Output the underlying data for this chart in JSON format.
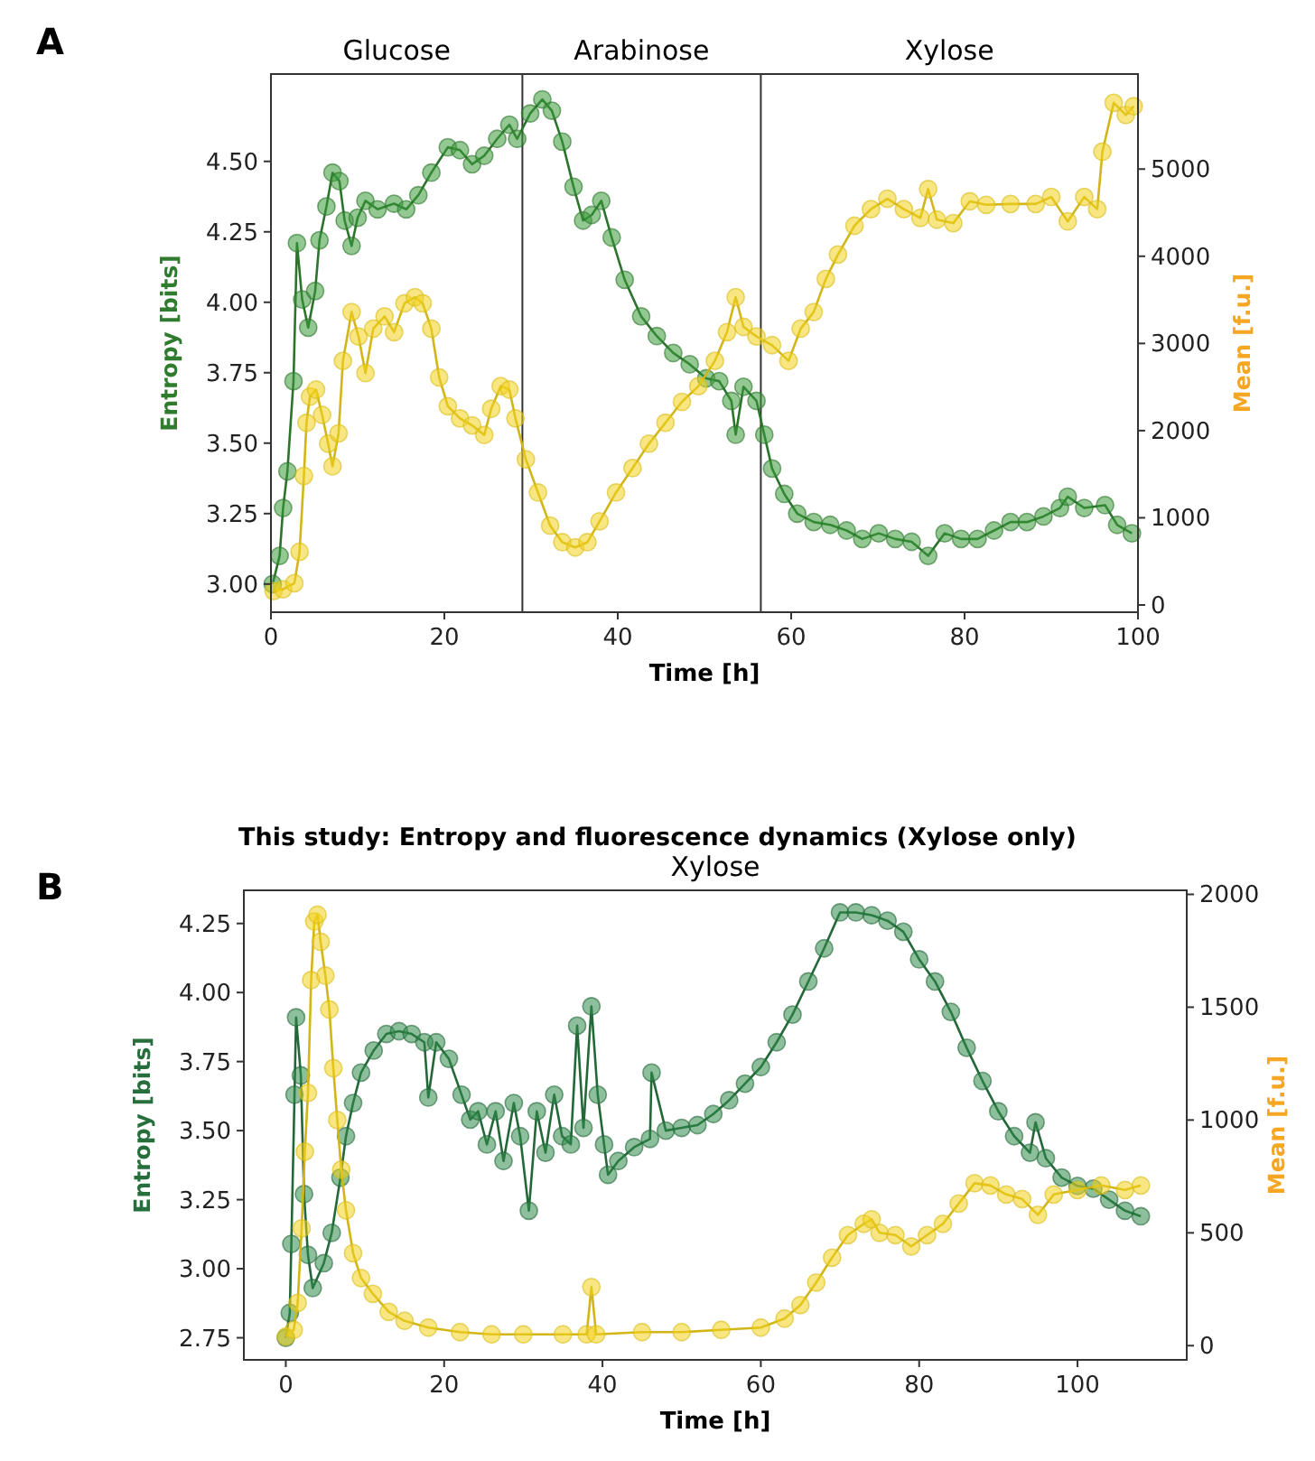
{
  "chart_data": [
    {
      "type": "line",
      "xlabel": "Time [h]",
      "ylabel": "Entropy [bits]",
      "y2label": "Mean [f.u.]",
      "xlim": [
        0,
        100
      ],
      "xticks": [
        0,
        20,
        40,
        60,
        80,
        100
      ],
      "ylim": [
        2.9,
        4.81
      ],
      "yticks": [
        {
          "value": 3,
          "label": "3.00"
        },
        {
          "value": 3.25,
          "label": "3.25"
        },
        {
          "value": 3.5,
          "label": "3.50"
        },
        {
          "value": 3.75,
          "label": "3.75"
        },
        {
          "value": 4,
          "label": "4.00"
        },
        {
          "value": 4.25,
          "label": "4.25"
        },
        {
          "value": 4.5,
          "label": "4.50"
        }
      ],
      "y2lim": [
        -83,
        6090
      ],
      "y2ticks": [
        0,
        1000,
        2000,
        3000,
        4000,
        5000
      ],
      "grid": false,
      "marker": "circle",
      "line_style": "solid",
      "annotations": [
        "A",
        "Glucose",
        "Arabinose",
        "Xylose"
      ],
      "ref_lines": [
        {
          "axis": "x",
          "value": 29,
          "color": "#333333"
        },
        {
          "axis": "x",
          "value": 56.5,
          "color": "#333333"
        }
      ],
      "series": [
        {
          "color": "#3a9a3a",
          "x": [
            0.2,
            1,
            1.4,
            1.9,
            2.6,
            3,
            3.6,
            4.3,
            5.1,
            5.6,
            6.4,
            7.1,
            7.9,
            8.5,
            9.3,
            10,
            10.9,
            12.3,
            14.2,
            15.6,
            17,
            18.5,
            20.4,
            21.8,
            23.2,
            24.6,
            26.1,
            27.5,
            28.4,
            29.9,
            31.3,
            32.4,
            33.6,
            34.9,
            36,
            37,
            38.1,
            39.3,
            40.8,
            42.7,
            44.5,
            46.4,
            48.3,
            50.2,
            51.7,
            53.1,
            53.6,
            54.5,
            56,
            56.9,
            57.8,
            59.2,
            60.7,
            62.6,
            64.5,
            66.4,
            68.2,
            70.1,
            72,
            73.9,
            75.8,
            77.7,
            79.6,
            81.5,
            83.4,
            85.3,
            87.2,
            89.1,
            91,
            91.9,
            93.8,
            96.2,
            97.6,
            99.3
          ],
          "values": [
            3,
            3.1,
            3.27,
            3.4,
            3.72,
            4.21,
            4.01,
            3.91,
            4.04,
            4.22,
            4.34,
            4.46,
            4.43,
            4.29,
            4.2,
            4.3,
            4.36,
            4.33,
            4.35,
            4.33,
            4.38,
            4.46,
            4.55,
            4.54,
            4.49,
            4.52,
            4.58,
            4.63,
            4.58,
            4.67,
            4.72,
            4.68,
            4.57,
            4.41,
            4.29,
            4.31,
            4.36,
            4.23,
            4.08,
            3.95,
            3.88,
            3.82,
            3.78,
            3.73,
            3.72,
            3.65,
            3.53,
            3.7,
            3.65,
            3.53,
            3.41,
            3.32,
            3.25,
            3.22,
            3.21,
            3.19,
            3.16,
            3.18,
            3.16,
            3.15,
            3.1,
            3.18,
            3.16,
            3.16,
            3.19,
            3.22,
            3.22,
            3.24,
            3.27,
            3.31,
            3.27,
            3.28,
            3.21,
            3.18
          ]
        },
        {
          "color": "#f2d21b",
          "axis": "y2",
          "x": [
            0.3,
            1.4,
            2.7,
            3.3,
            3.8,
            4.1,
            4.5,
            5.2,
            5.9,
            6.6,
            7.1,
            7.8,
            8.3,
            9.3,
            10.1,
            10.9,
            11.8,
            13.1,
            14.2,
            15.4,
            16.6,
            17.5,
            18.5,
            19.4,
            20.4,
            21.8,
            23.2,
            24.6,
            25.4,
            26.5,
            27.5,
            28.2,
            29.4,
            30.8,
            32.2,
            33.6,
            35.1,
            36.5,
            37.9,
            39.8,
            41.7,
            43.6,
            45.5,
            47.4,
            49.3,
            51.2,
            52.6,
            53.6,
            54.5,
            56,
            57.8,
            59.7,
            61.1,
            62.6,
            64,
            65.4,
            67.3,
            69.2,
            71.1,
            73,
            74.9,
            75.8,
            76.8,
            78.7,
            80.6,
            82.5,
            85.3,
            88.2,
            90,
            91.9,
            93.8,
            95.3,
            95.9,
            97.2,
            98.6,
            99.5
          ],
          "values": [
            160,
            180,
            250,
            610,
            1480,
            2090,
            2390,
            2470,
            2180,
            1850,
            1590,
            1970,
            2800,
            3360,
            3080,
            2660,
            3170,
            3310,
            3130,
            3460,
            3530,
            3460,
            3170,
            2610,
            2280,
            2140,
            2060,
            1950,
            2250,
            2510,
            2470,
            2140,
            1670,
            1290,
            910,
            720,
            660,
            720,
            960,
            1290,
            1570,
            1850,
            2090,
            2330,
            2510,
            2800,
            3130,
            3530,
            3190,
            3080,
            2980,
            2800,
            3170,
            3360,
            3740,
            4020,
            4350,
            4540,
            4660,
            4540,
            4440,
            4770,
            4420,
            4380,
            4630,
            4590,
            4600,
            4600,
            4680,
            4400,
            4680,
            4540,
            5200,
            5760,
            5620,
            5720
          ]
        }
      ]
    },
    {
      "type": "line",
      "title": "Xylose",
      "xlabel": "Time [h]",
      "ylabel": "Entropy [bits]",
      "y2label": "Mean [f.u.]",
      "xlim": [
        -5.3,
        113.8
      ],
      "xticks": [
        0,
        20,
        40,
        60,
        80,
        100
      ],
      "ylim": [
        2.67,
        4.37
      ],
      "yticks": [
        {
          "value": 2.75,
          "label": "2.75"
        },
        {
          "value": 3,
          "label": "3.00"
        },
        {
          "value": 3.25,
          "label": "3.25"
        },
        {
          "value": 3.5,
          "label": "3.50"
        },
        {
          "value": 3.75,
          "label": "3.75"
        },
        {
          "value": 4,
          "label": "4.00"
        },
        {
          "value": 4.25,
          "label": "4.25"
        }
      ],
      "y2lim": [
        -63,
        2018
      ],
      "y2ticks": [
        0,
        500,
        1000,
        1500,
        2000
      ],
      "grid": false,
      "marker": "circle",
      "line_style": "solid",
      "annotations": [
        "B",
        "This study: Entropy and fluorescence dynamics (Xylose only)"
      ],
      "series": [
        {
          "color": "#2f8a4a",
          "x": [
            0,
            0.5,
            0.7,
            1.1,
            1.3,
            1.9,
            2.3,
            2.8,
            3.4,
            4.8,
            5.8,
            6.9,
            7.6,
            8.5,
            9.5,
            11.1,
            12.7,
            14.3,
            15.9,
            17.5,
            18,
            19,
            20.6,
            22.2,
            23.3,
            24.3,
            25.4,
            26.5,
            27.5,
            28.8,
            29.6,
            30.7,
            31.7,
            32.8,
            33.9,
            34.9,
            36,
            36.8,
            37.6,
            38.6,
            39.4,
            40.2,
            40.7,
            42,
            44,
            46,
            46.2,
            48,
            50,
            52,
            54,
            56,
            58,
            60,
            62,
            64,
            66,
            68,
            70,
            72,
            74,
            76,
            78,
            80,
            82,
            84,
            86,
            88,
            90,
            92,
            94,
            94.7,
            96,
            98,
            100,
            102,
            104,
            106,
            108
          ],
          "values": [
            2.75,
            2.84,
            3.09,
            3.63,
            3.91,
            3.7,
            3.27,
            3.05,
            2.93,
            3.02,
            3.13,
            3.33,
            3.48,
            3.6,
            3.71,
            3.79,
            3.85,
            3.86,
            3.85,
            3.82,
            3.62,
            3.82,
            3.76,
            3.63,
            3.54,
            3.57,
            3.45,
            3.57,
            3.39,
            3.6,
            3.48,
            3.21,
            3.57,
            3.42,
            3.63,
            3.48,
            3.45,
            3.88,
            3.51,
            3.95,
            3.63,
            3.45,
            3.34,
            3.39,
            3.44,
            3.47,
            3.71,
            3.5,
            3.51,
            3.52,
            3.56,
            3.61,
            3.67,
            3.73,
            3.82,
            3.92,
            4.04,
            4.16,
            4.29,
            4.29,
            4.28,
            4.26,
            4.22,
            4.12,
            4.04,
            3.93,
            3.8,
            3.68,
            3.57,
            3.48,
            3.42,
            3.53,
            3.4,
            3.33,
            3.3,
            3.29,
            3.25,
            3.21,
            3.19
          ]
        },
        {
          "color": "#f2d21b",
          "axis": "y2",
          "x": [
            0,
            1,
            1.5,
            2,
            2.4,
            2.8,
            3.2,
            3.6,
            4,
            4.4,
            5,
            5.5,
            6,
            6.5,
            7,
            7.6,
            8.5,
            9.5,
            11,
            13,
            15,
            18,
            22,
            26,
            30,
            35,
            38,
            38.6,
            39.2,
            45,
            50,
            55,
            60,
            63,
            65,
            67,
            69,
            71,
            73,
            74,
            75,
            77,
            79,
            81,
            83,
            85,
            87,
            89,
            91,
            93,
            95,
            97,
            100,
            103,
            106,
            108
          ],
          "values": [
            40,
            70,
            190,
            520,
            860,
            1120,
            1620,
            1880,
            1910,
            1790,
            1640,
            1490,
            1230,
            1000,
            780,
            600,
            410,
            300,
            230,
            150,
            110,
            80,
            60,
            50,
            50,
            50,
            50,
            260,
            50,
            60,
            60,
            70,
            80,
            120,
            180,
            280,
            390,
            490,
            540,
            560,
            500,
            490,
            440,
            490,
            540,
            630,
            720,
            710,
            670,
            650,
            580,
            670,
            690,
            710,
            690,
            710
          ]
        }
      ]
    }
  ]
}
